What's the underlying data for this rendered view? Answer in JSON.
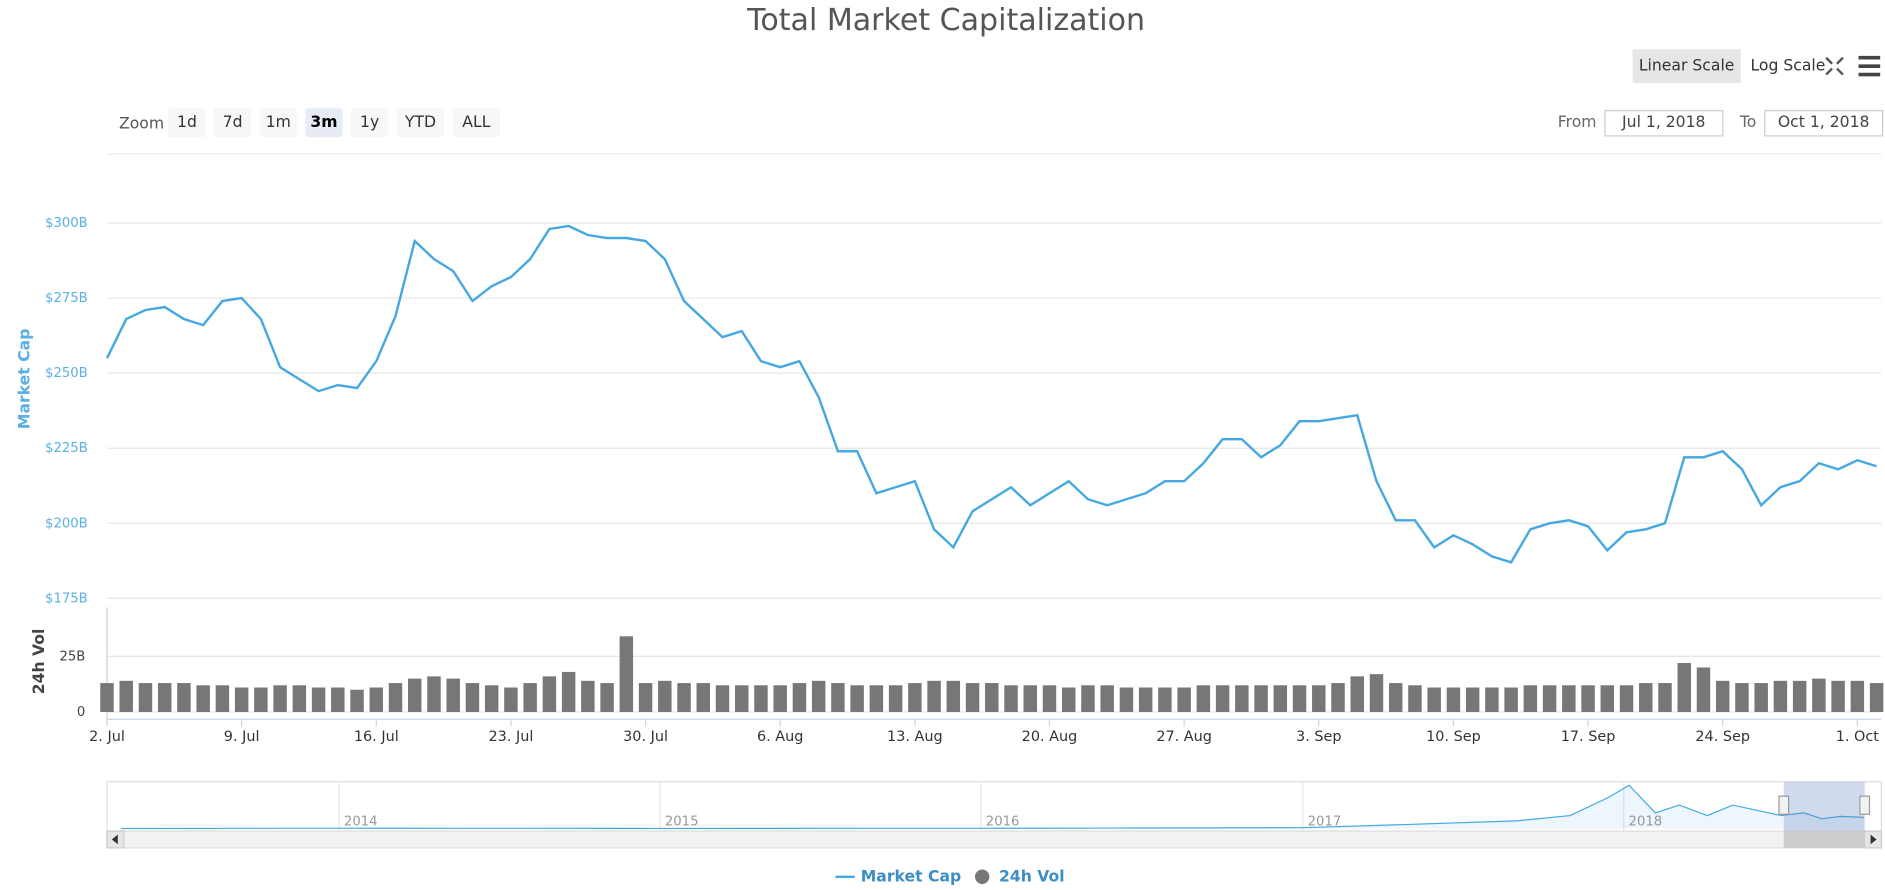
{
  "chart_data": {
    "type": "line",
    "title": "Total Market Capitalization",
    "ylabel": "Market Cap",
    "y2label": "24h Vol",
    "x": [
      "2018-07-02",
      "2018-07-03",
      "2018-07-04",
      "2018-07-05",
      "2018-07-06",
      "2018-07-07",
      "2018-07-08",
      "2018-07-09",
      "2018-07-10",
      "2018-07-11",
      "2018-07-12",
      "2018-07-13",
      "2018-07-14",
      "2018-07-15",
      "2018-07-16",
      "2018-07-17",
      "2018-07-18",
      "2018-07-19",
      "2018-07-20",
      "2018-07-21",
      "2018-07-22",
      "2018-07-23",
      "2018-07-24",
      "2018-07-25",
      "2018-07-26",
      "2018-07-27",
      "2018-07-28",
      "2018-07-29",
      "2018-07-30",
      "2018-07-31",
      "2018-08-01",
      "2018-08-02",
      "2018-08-03",
      "2018-08-04",
      "2018-08-05",
      "2018-08-06",
      "2018-08-07",
      "2018-08-08",
      "2018-08-09",
      "2018-08-10",
      "2018-08-11",
      "2018-08-12",
      "2018-08-13",
      "2018-08-14",
      "2018-08-15",
      "2018-08-16",
      "2018-08-17",
      "2018-08-18",
      "2018-08-19",
      "2018-08-20",
      "2018-08-21",
      "2018-08-22",
      "2018-08-23",
      "2018-08-24",
      "2018-08-25",
      "2018-08-26",
      "2018-08-27",
      "2018-08-28",
      "2018-08-29",
      "2018-08-30",
      "2018-08-31",
      "2018-09-01",
      "2018-09-02",
      "2018-09-03",
      "2018-09-04",
      "2018-09-05",
      "2018-09-06",
      "2018-09-07",
      "2018-09-08",
      "2018-09-09",
      "2018-09-10",
      "2018-09-11",
      "2018-09-12",
      "2018-09-13",
      "2018-09-14",
      "2018-09-15",
      "2018-09-16",
      "2018-09-17",
      "2018-09-18",
      "2018-09-19",
      "2018-09-20",
      "2018-09-21",
      "2018-09-22",
      "2018-09-23",
      "2018-09-24",
      "2018-09-25",
      "2018-09-26",
      "2018-09-27",
      "2018-09-28",
      "2018-09-29",
      "2018-09-30",
      "2018-10-01",
      "2018-10-02"
    ],
    "series": [
      {
        "name": "Market Cap",
        "type": "line",
        "color": "#46a8e0",
        "values": [
          255,
          268,
          271,
          272,
          268,
          266,
          274,
          275,
          268,
          252,
          248,
          244,
          246,
          245,
          254,
          269,
          294,
          288,
          284,
          274,
          279,
          282,
          288,
          298,
          299,
          296,
          295,
          295,
          294,
          288,
          274,
          268,
          262,
          264,
          254,
          252,
          254,
          242,
          224,
          224,
          210,
          212,
          214,
          198,
          192,
          204,
          208,
          212,
          206,
          210,
          214,
          208,
          206,
          208,
          210,
          214,
          214,
          220,
          228,
          228,
          222,
          226,
          234,
          234,
          235,
          236,
          214,
          201,
          201,
          192,
          196,
          193,
          189,
          187,
          198,
          200,
          201,
          199,
          191,
          197,
          198,
          200,
          222,
          222,
          224,
          218,
          206,
          212,
          214,
          220,
          218,
          221,
          219
        ]
      },
      {
        "name": "24h Vol",
        "type": "bar",
        "axis": "y2",
        "color": "#777777",
        "values": [
          13,
          14,
          13,
          13,
          13,
          12,
          12,
          11,
          11,
          12,
          12,
          11,
          11,
          10,
          11,
          13,
          15,
          16,
          15,
          13,
          12,
          11,
          13,
          16,
          18,
          14,
          13,
          34,
          13,
          14,
          13,
          13,
          12,
          12,
          12,
          12,
          13,
          14,
          13,
          12,
          12,
          12,
          13,
          14,
          14,
          13,
          13,
          12,
          12,
          12,
          11,
          12,
          12,
          11,
          11,
          11,
          11,
          12,
          12,
          12,
          12,
          12,
          12,
          12,
          13,
          16,
          17,
          13,
          12,
          11,
          11,
          11,
          11,
          11,
          12,
          12,
          12,
          12,
          12,
          12,
          13,
          13,
          22,
          20,
          14,
          13,
          13,
          14,
          14,
          15,
          14,
          14,
          13
        ]
      }
    ],
    "xlim": [
      "2018-07-02",
      "2018-10-02"
    ],
    "xticks": [
      {
        "value": "2018-07-02",
        "label": "2. Jul"
      },
      {
        "value": "2018-07-09",
        "label": "9. Jul"
      },
      {
        "value": "2018-07-16",
        "label": "16. Jul"
      },
      {
        "value": "2018-07-23",
        "label": "23. Jul"
      },
      {
        "value": "2018-07-30",
        "label": "30. Jul"
      },
      {
        "value": "2018-08-06",
        "label": "6. Aug"
      },
      {
        "value": "2018-08-13",
        "label": "13. Aug"
      },
      {
        "value": "2018-08-20",
        "label": "20. Aug"
      },
      {
        "value": "2018-08-27",
        "label": "27. Aug"
      },
      {
        "value": "2018-09-03",
        "label": "3. Sep"
      },
      {
        "value": "2018-09-10",
        "label": "10. Sep"
      },
      {
        "value": "2018-09-17",
        "label": "17. Sep"
      },
      {
        "value": "2018-09-24",
        "label": "24. Sep"
      },
      {
        "value": "2018-10-01",
        "label": "1. Oct"
      }
    ],
    "ylim": [
      172,
      323
    ],
    "yticks": [
      {
        "value": 175,
        "label": "$175B"
      },
      {
        "value": 200,
        "label": "$200B"
      },
      {
        "value": 225,
        "label": "$225B"
      },
      {
        "value": 250,
        "label": "$250B"
      },
      {
        "value": 275,
        "label": "$275B"
      },
      {
        "value": 300,
        "label": "$300B"
      }
    ],
    "y2lim": [
      0,
      47
    ],
    "y2ticks": [
      0,
      {
        "value": 25,
        "label": "25B"
      }
    ],
    "grid": true,
    "legend": "bottom",
    "navigator": {
      "color": "#46a8e0",
      "x": [
        "2013-04-28",
        "2014-01-01",
        "2014-06-01",
        "2015-01-01",
        "2016-01-01",
        "2016-06-01",
        "2017-01-01",
        "2017-05-01",
        "2017-09-01",
        "2017-11-01",
        "2017-12-15",
        "2018-01-07",
        "2018-02-06",
        "2018-03-05",
        "2018-04-06",
        "2018-05-05",
        "2018-06-29",
        "2018-07-25",
        "2018-08-14",
        "2018-09-05",
        "2018-10-01"
      ],
      "values": [
        1.5,
        10,
        8,
        5,
        7,
        12,
        18,
        80,
        150,
        250,
        600,
        830,
        300,
        450,
        250,
        450,
        250,
        300,
        190,
        235,
        215
      ],
      "xlim": [
        "2013-04-12",
        "2018-10-21"
      ],
      "ylim": [
        0,
        850
      ],
      "xticks": [
        {
          "value": "2014-01-01",
          "label": "2014"
        },
        {
          "value": "2015-01-01",
          "label": "2015"
        },
        {
          "value": "2016-01-01",
          "label": "2016"
        },
        {
          "value": "2017-01-01",
          "label": "2017"
        },
        {
          "value": "2018-01-01",
          "label": "2018"
        }
      ]
    }
  },
  "controls": {
    "zoom_label": "Zoom",
    "zoom_buttons": [
      "1d",
      "7d",
      "1m",
      "3m",
      "1y",
      "YTD",
      "ALL"
    ],
    "active_zoom": "3m",
    "from_label": "From",
    "from_value": "Jul 1, 2018",
    "to_label": "To",
    "to_value": "Oct 1, 2018",
    "scale_buttons": [
      "Linear Scale",
      "Log Scale"
    ],
    "active_scale": "Linear Scale"
  }
}
